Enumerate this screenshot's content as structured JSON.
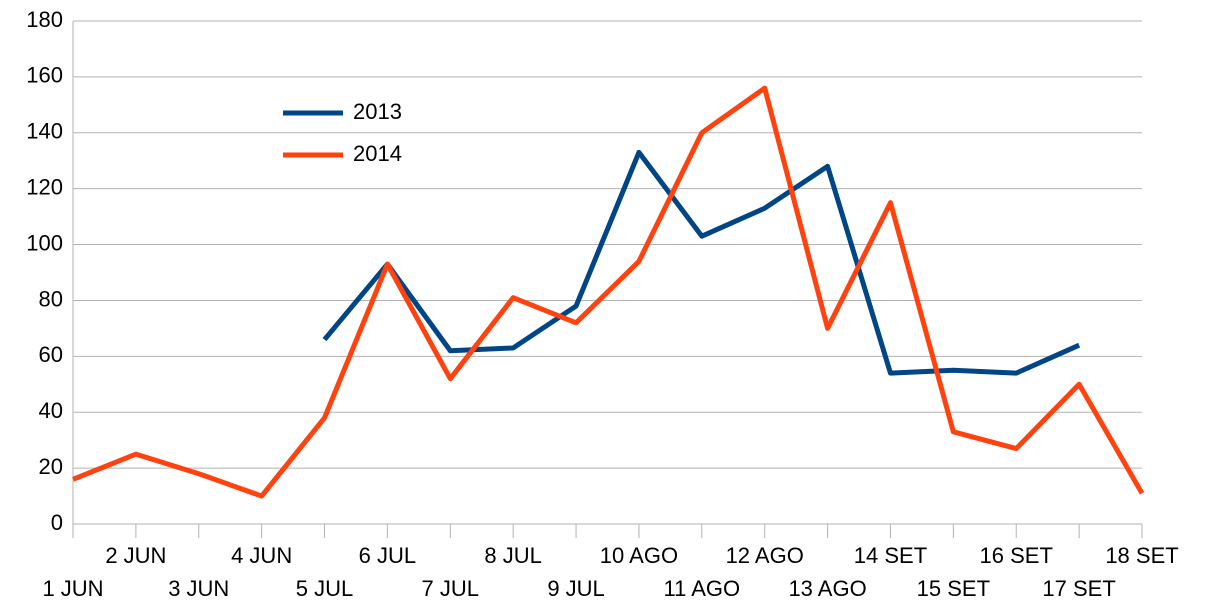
{
  "chart_data": {
    "type": "line",
    "categories": [
      "1 JUN",
      "2 JUN",
      "3 JUN",
      "4 JUN",
      "5 JUL",
      "6 JUL",
      "7 JUL",
      "8 JUL",
      "9 JUL",
      "10 AGO",
      "11 AGO",
      "12 AGO",
      "13 AGO",
      "14 SET",
      "15 SET",
      "16 SET",
      "17 SET",
      "18 SET"
    ],
    "series": [
      {
        "name": "2013",
        "color": "#004586",
        "values": [
          null,
          null,
          null,
          null,
          66,
          93,
          62,
          63,
          78,
          133,
          103,
          113,
          128,
          54,
          55,
          54,
          64,
          null
        ]
      },
      {
        "name": "2014",
        "color": "#ff420e",
        "values": [
          16,
          25,
          18,
          10,
          38,
          93,
          52,
          81,
          72,
          94,
          140,
          156,
          70,
          115,
          33,
          27,
          50,
          11
        ]
      }
    ],
    "ylim": [
      0,
      180
    ],
    "yticks": [
      0,
      20,
      40,
      60,
      80,
      100,
      120,
      140,
      160,
      180
    ],
    "grid": true,
    "legend": "upper-left"
  }
}
